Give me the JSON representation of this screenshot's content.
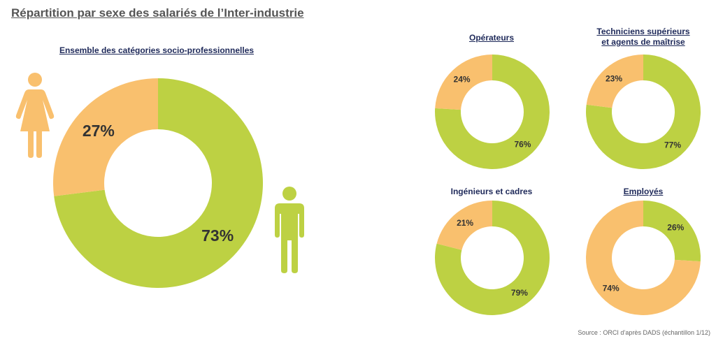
{
  "page": {
    "title": "Répartition par sexe des salariés de l’Inter-industrie",
    "source": "Source : ORCI d’après DADS (échantillon 1/12)"
  },
  "colors": {
    "male": "#bdd143",
    "female": "#f9c06e",
    "label": "#333333",
    "title": "#1f2a5a"
  },
  "icons": [
    "woman-figure-icon",
    "man-figure-icon"
  ],
  "chart_data": [
    {
      "type": "pie",
      "donut": true,
      "title": "Ensemble des catégories socio-professionnelles",
      "slices": [
        {
          "value": 73,
          "label": "73%",
          "color": "#bdd143"
        },
        {
          "value": 27,
          "label": "27%",
          "color": "#f9c06e"
        }
      ]
    },
    {
      "type": "pie",
      "donut": true,
      "title": "Opérateurs",
      "slices": [
        {
          "value": 76,
          "label": "76%",
          "color": "#bdd143"
        },
        {
          "value": 24,
          "label": "24%",
          "color": "#f9c06e"
        }
      ]
    },
    {
      "type": "pie",
      "donut": true,
      "title": "Techniciens supérieurs et agents de maîtrise",
      "title_lines": [
        "Techniciens supérieurs",
        "et agents de maîtrise"
      ],
      "slices": [
        {
          "value": 77,
          "label": "77%",
          "color": "#bdd143"
        },
        {
          "value": 23,
          "label": "23%",
          "color": "#f9c06e"
        }
      ]
    },
    {
      "type": "pie",
      "donut": true,
      "title": "Ingénieurs et cadres",
      "slices": [
        {
          "value": 79,
          "label": "79%",
          "color": "#bdd143"
        },
        {
          "value": 21,
          "label": "21%",
          "color": "#f9c06e"
        }
      ]
    },
    {
      "type": "pie",
      "donut": true,
      "title": "Employés",
      "slices": [
        {
          "value": 26,
          "label": "26%",
          "color": "#bdd143"
        },
        {
          "value": 74,
          "label": "74%",
          "color": "#f9c06e"
        }
      ]
    }
  ]
}
